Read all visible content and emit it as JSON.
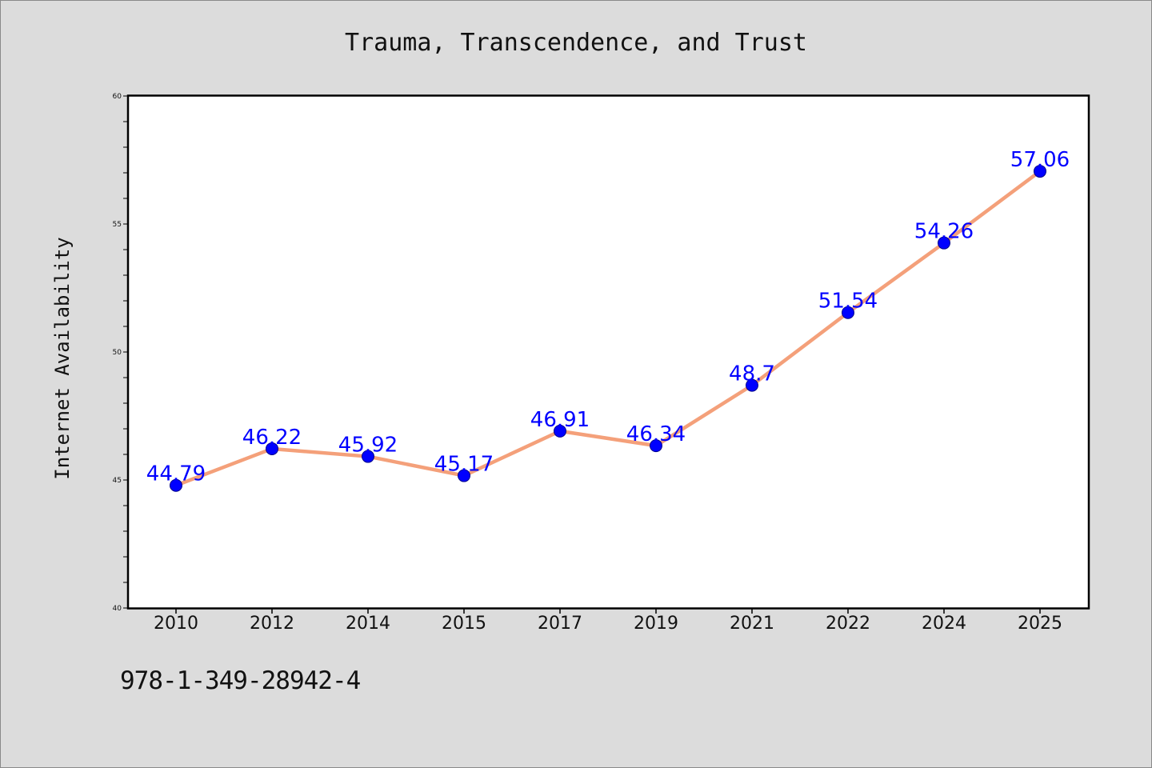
{
  "chart_data": {
    "type": "line",
    "title": "Trauma, Transcendence, and Trust",
    "xlabel": "",
    "ylabel": "Internet Availability",
    "categories": [
      "2010",
      "2012",
      "2014",
      "2015",
      "2017",
      "2019",
      "2021",
      "2022",
      "2024",
      "2025"
    ],
    "series": [
      {
        "values": [
          44.79,
          46.22,
          45.92,
          45.17,
          46.91,
          46.34,
          48.7,
          51.54,
          54.26,
          57.06
        ],
        "data_labels": [
          "44.79",
          "46.22",
          "45.92",
          "45.17",
          "46.91",
          "46.34",
          "48.7",
          "51.54",
          "54.26",
          "57.06"
        ]
      }
    ],
    "ylim": [
      40,
      60
    ],
    "yticks": [
      "40",
      "45",
      "50",
      "55",
      "60"
    ],
    "grid": false,
    "legend": "none",
    "colors": {
      "line": "#f4a07a",
      "marker": "#0000ff",
      "label": "#0000ff",
      "background": "#dcdcdc",
      "plot_background": "#ffffff"
    }
  },
  "footer": {
    "isbn": "978-1-349-28942-4"
  }
}
